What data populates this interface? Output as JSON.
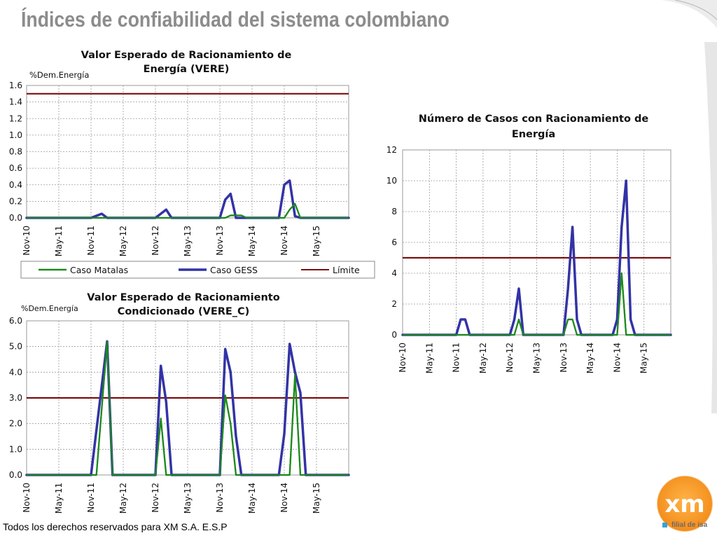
{
  "slide": {
    "title": "Índices de confiabilidad del sistema colombiano",
    "footer": "Todos los derechos reservados para XM S.A. E.S.P",
    "logo_text": "xm",
    "logo_subtext": "filial de isa"
  },
  "colors": {
    "matalas": "#1e8a1e",
    "gess": "#3333a6",
    "limite": "#7a1010",
    "title": "#8c8c8c",
    "logo_orange": "#f28c1a"
  },
  "chart_data": [
    {
      "type": "line",
      "title_line1": "Valor Esperado de Racionamiento de",
      "title_line2": "Energía (VERE)",
      "ylabel": "%Dem.Energía",
      "ylim": [
        0,
        1.6
      ],
      "yticks": [
        "0.0",
        "0.2",
        "0.4",
        "0.6",
        "0.8",
        "1.0",
        "1.2",
        "1.4",
        "1.6"
      ],
      "xticks": [
        "Nov-10",
        "May-11",
        "Nov-11",
        "May-12",
        "Nov-12",
        "May-13",
        "Nov-13",
        "May-14",
        "Nov-14",
        "May-15"
      ],
      "xlim": [
        0,
        60
      ],
      "legend": [
        "Caso Matalas",
        "Caso GESS",
        "Límite"
      ],
      "legend_position": "bottom",
      "limite": 1.5,
      "series": [
        {
          "name": "Caso Matalas",
          "x": [
            0,
            37,
            38,
            40,
            41,
            48,
            49,
            50,
            51,
            60
          ],
          "y": [
            0,
            0,
            0.03,
            0.03,
            0,
            0,
            0.1,
            0.17,
            0,
            0
          ]
        },
        {
          "name": "Caso GESS",
          "x": [
            0,
            12,
            14,
            15,
            24,
            26,
            27,
            36,
            37,
            38,
            39,
            47,
            48,
            49,
            50,
            51,
            60
          ],
          "y": [
            0,
            0,
            0.05,
            0,
            0,
            0.1,
            0,
            0,
            0.22,
            0.29,
            0,
            0,
            0.4,
            0.45,
            0.02,
            0,
            0
          ]
        }
      ]
    },
    {
      "type": "line",
      "title_line1": "Valor Esperado de Racionamiento",
      "title_line2": "Condicionado (VERE_C)",
      "ylabel": "%Dem.Energía",
      "ylim": [
        0,
        6
      ],
      "yticks": [
        "0.0",
        "1.0",
        "2.0",
        "3.0",
        "4.0",
        "5.0",
        "6.0"
      ],
      "xticks": [
        "Nov-10",
        "May-11",
        "Nov-11",
        "May-12",
        "Nov-12",
        "May-13",
        "Nov-13",
        "May-14",
        "Nov-14",
        "May-15"
      ],
      "xlim": [
        0,
        60
      ],
      "limite": 3,
      "series": [
        {
          "name": "Caso Matalas",
          "x": [
            0,
            13,
            15,
            16,
            24,
            25,
            26,
            36,
            37,
            38,
            39,
            49,
            50,
            51,
            60
          ],
          "y": [
            0,
            0,
            5.2,
            0,
            0,
            2.2,
            0,
            0,
            3.1,
            2,
            0,
            0,
            3.9,
            0,
            0
          ]
        },
        {
          "name": "Caso GESS",
          "x": [
            0,
            12,
            15,
            16,
            24,
            25,
            26,
            27,
            36,
            37,
            38,
            39,
            40,
            47,
            48,
            49,
            50,
            51,
            52,
            60
          ],
          "y": [
            0,
            0,
            5.2,
            0,
            0,
            4.25,
            2.85,
            0,
            0,
            4.9,
            4.0,
            1.5,
            0,
            0,
            1.6,
            5.1,
            4.0,
            3.2,
            0,
            0
          ]
        }
      ]
    },
    {
      "type": "line",
      "title_line1": "Número de Casos con Racionamiento de",
      "title_line2": "Energía",
      "ylim": [
        0,
        12
      ],
      "yticks": [
        "0",
        "2",
        "4",
        "6",
        "8",
        "10",
        "12"
      ],
      "xticks": [
        "Nov-10",
        "May-11",
        "Nov-11",
        "May-12",
        "Nov-12",
        "May-13",
        "Nov-13",
        "May-14",
        "Nov-14",
        "May-15"
      ],
      "xlim": [
        0,
        60
      ],
      "limite": 5,
      "series": [
        {
          "name": "Caso Matalas",
          "x": [
            0,
            25,
            26,
            27,
            36,
            37,
            38,
            39,
            47,
            48,
            49,
            50,
            51,
            60
          ],
          "y": [
            0,
            0,
            1,
            0,
            0,
            1,
            1,
            0,
            0,
            0,
            4,
            0,
            0,
            0
          ]
        },
        {
          "name": "Caso GESS",
          "x": [
            0,
            12,
            13,
            14,
            15,
            24,
            25,
            26,
            27,
            36,
            37,
            38,
            39,
            40,
            47,
            48,
            49,
            50,
            51,
            52,
            60
          ],
          "y": [
            0,
            0,
            1,
            1,
            0,
            0,
            1,
            3,
            0,
            0,
            3,
            7,
            1,
            0,
            0,
            1,
            7,
            10,
            1,
            0,
            0
          ]
        }
      ]
    }
  ]
}
